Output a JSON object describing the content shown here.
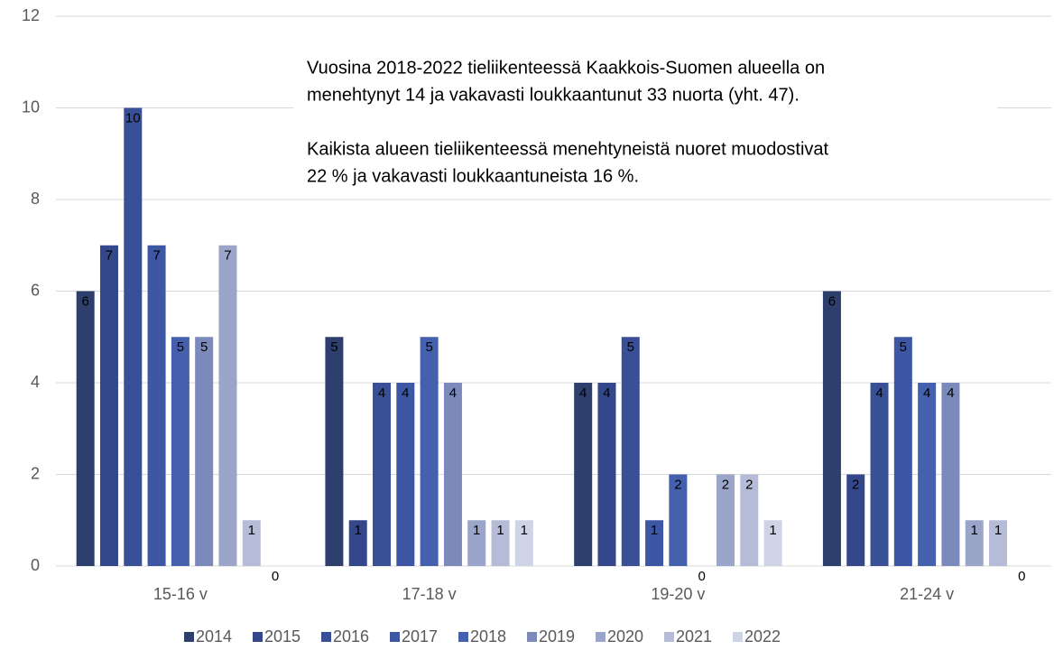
{
  "chart_data": {
    "type": "bar",
    "annotations": [
      "Vuosina 2018-2022 tieliikenteessä Kaakkois-Suomen alueella on",
      "menehtynyt 14 ja vakavasti loukkaantunut 33 nuorta (yht. 47).",
      "Kaikista alueen tieliikenteessä menehtyneistä nuoret muodostivat",
      "22 % ja vakavasti loukkaantuneista 16 %."
    ],
    "categories": [
      "15-16 v",
      "17-18 v",
      "19-20 v",
      "21-24 v"
    ],
    "series": [
      {
        "name": "2014",
        "color": "#2e3f6e",
        "values": [
          6,
          5,
          4,
          6
        ]
      },
      {
        "name": "2015",
        "color": "#34478a",
        "values": [
          7,
          1,
          4,
          2
        ]
      },
      {
        "name": "2016",
        "color": "#3a5096",
        "values": [
          10,
          4,
          5,
          4
        ]
      },
      {
        "name": "2017",
        "color": "#3d57a4",
        "values": [
          7,
          4,
          1,
          5
        ]
      },
      {
        "name": "2018",
        "color": "#4561ae",
        "values": [
          5,
          5,
          2,
          4
        ]
      },
      {
        "name": "2019",
        "color": "#7b89bb",
        "values": [
          5,
          4,
          0,
          4
        ]
      },
      {
        "name": "2020",
        "color": "#9ba5c9",
        "values": [
          7,
          1,
          2,
          1
        ]
      },
      {
        "name": "2021",
        "color": "#b6bcd8",
        "values": [
          1,
          1,
          2,
          1
        ]
      },
      {
        "name": "2022",
        "color": "#cfd3e6",
        "values": [
          0,
          1,
          1,
          0
        ]
      }
    ],
    "ylim": [
      0,
      12
    ],
    "yticks": [
      0,
      2,
      4,
      6,
      8,
      10,
      12
    ],
    "grid": true,
    "legend": "bottom"
  }
}
